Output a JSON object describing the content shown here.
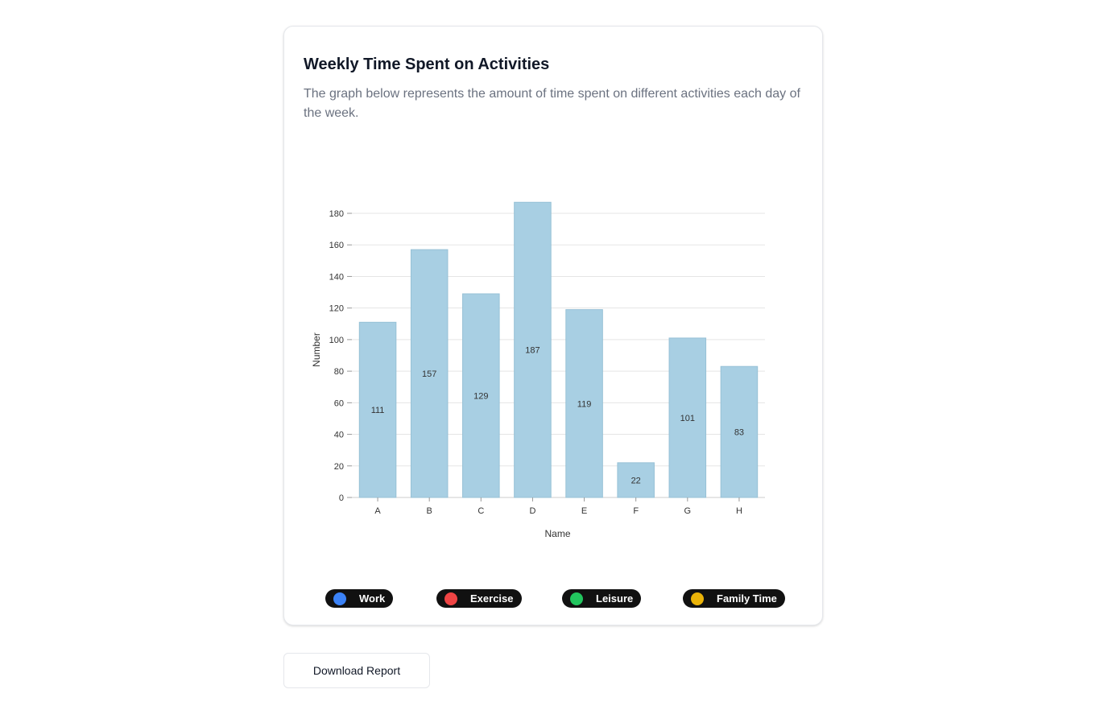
{
  "card": {
    "title": "Weekly Time Spent on Activities",
    "description": "The graph below represents the amount of time spent on different activities each day of the week."
  },
  "chart_data": {
    "type": "bar",
    "categories": [
      "A",
      "B",
      "C",
      "D",
      "E",
      "F",
      "G",
      "H"
    ],
    "values": [
      111,
      157,
      129,
      187,
      119,
      22,
      101,
      83
    ],
    "xlabel": "Name",
    "ylabel": "Number",
    "ylim": [
      0,
      180
    ],
    "yticks": [
      0,
      20,
      40,
      60,
      80,
      100,
      120,
      140,
      160,
      180
    ],
    "grid": true,
    "bar_color": "#a8cfe3",
    "data_labels": true
  },
  "legend": [
    {
      "label": "Work",
      "color": "#3b82f6"
    },
    {
      "label": "Exercise",
      "color": "#ef4444"
    },
    {
      "label": "Leisure",
      "color": "#22c55e"
    },
    {
      "label": "Family Time",
      "color": "#eab308"
    }
  ],
  "download_button": {
    "label": "Download Report"
  }
}
